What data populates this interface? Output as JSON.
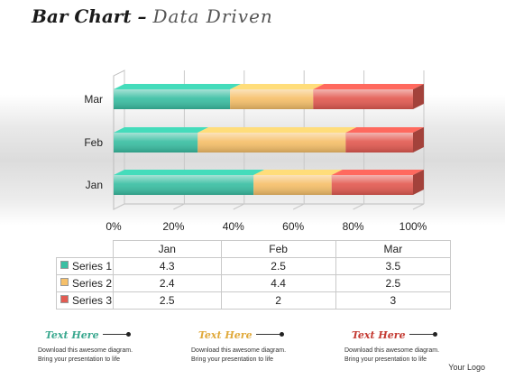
{
  "title": {
    "main": "Bar Chart",
    "dash": " – ",
    "sub": "Data Driven"
  },
  "chart_data": {
    "type": "bar",
    "orientation": "horizontal",
    "stacked": "percent",
    "categories": [
      "Jan",
      "Feb",
      "Mar"
    ],
    "series": [
      {
        "name": "Series 1",
        "values": [
          4.3,
          2.5,
          3.5
        ],
        "color": "#3bbfa3"
      },
      {
        "name": "Series 2",
        "values": [
          2.4,
          4.4,
          2.5
        ],
        "color": "#f6c06a"
      },
      {
        "name": "Series 3",
        "values": [
          2.5,
          2,
          3
        ],
        "color": "#e35b52"
      }
    ],
    "x_ticks": [
      "0%",
      "20%",
      "40%",
      "60%",
      "80%",
      "100%"
    ],
    "xlim": [
      0,
      100
    ],
    "grid": true,
    "legend": "data-table-below"
  },
  "footers": [
    {
      "label": "Text Here",
      "color": "#3aa88f",
      "line1": "Download this awesome diagram.",
      "line2": "Bring your presentation to life"
    },
    {
      "label": "Text Here",
      "color": "#e0a93a",
      "line1": "Download this awesome diagram.",
      "line2": "Bring your presentation to life"
    },
    {
      "label": "Text Here",
      "color": "#c43a32",
      "line1": "Download this awesome diagram.",
      "line2": "Bring your presentation to life"
    }
  ],
  "logo": "Your Logo"
}
